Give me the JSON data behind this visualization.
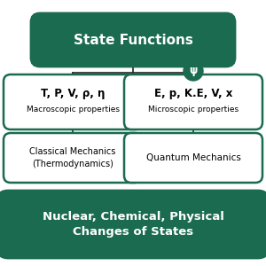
{
  "bg_color": "#ffffff",
  "dark_green": "#1a6b50",
  "box_edge_color": "#1a6b50",
  "title_text": "State Functions",
  "macro_line1": "T, P, V, ρ, η",
  "macro_line2": "Macroscopic properties",
  "micro_line1": "E, p, K.E, V, x",
  "micro_line2": "Microscopic properties",
  "classical_text": "Classical Mechanics\n(Thermodynamics)",
  "quantum_text": "Quantum Mechanics",
  "bottom_text": "Nuclear, Chemical, Physical\nChanges of States",
  "psi_text": "ψ",
  "line_color": "#222222",
  "line_width": 1.2
}
